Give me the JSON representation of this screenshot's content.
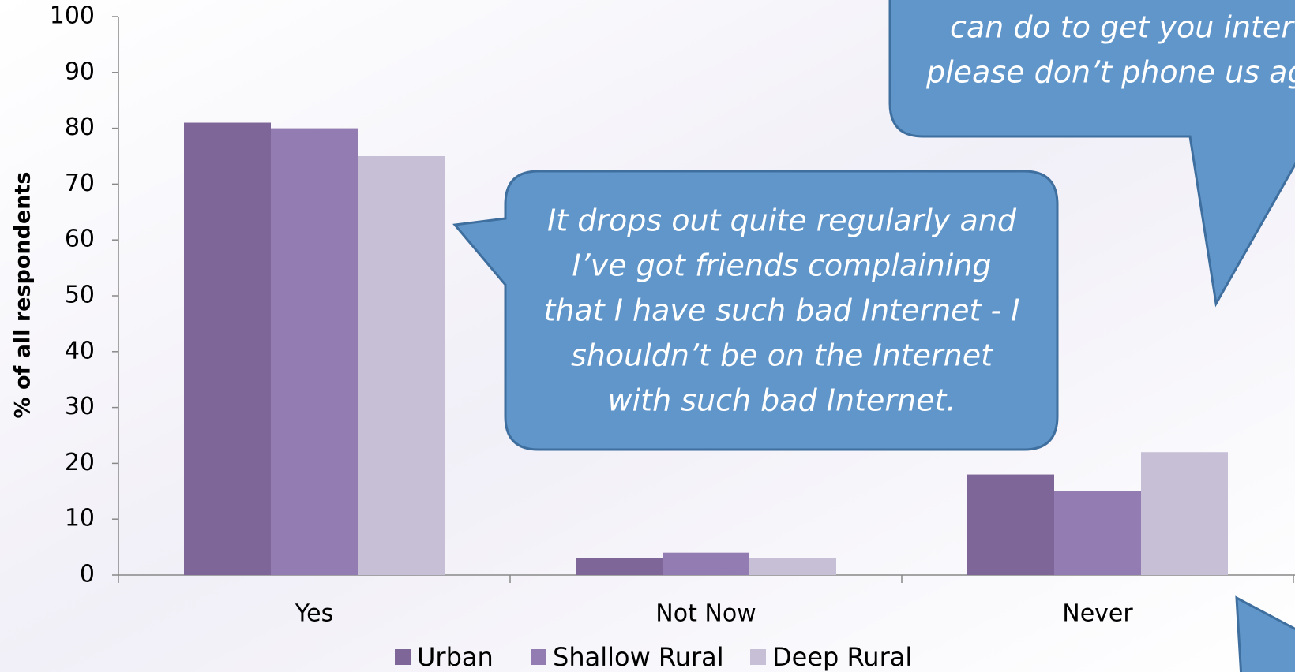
{
  "chart_data": {
    "type": "bar",
    "y_axis_label": "% of all respondents",
    "categories": [
      "Yes",
      "Not Now",
      "Never"
    ],
    "series": [
      {
        "name": "Urban",
        "color": "#7e6698",
        "values": [
          81,
          3,
          18
        ]
      },
      {
        "name": "Shallow Rural",
        "color": "#927cb1",
        "values": [
          80,
          4,
          15
        ]
      },
      {
        "name": "Deep Rural",
        "color": "#c6bfd6",
        "values": [
          75,
          3,
          22
        ]
      }
    ],
    "ylim": [
      0,
      100
    ],
    "yticks": [
      0,
      10,
      20,
      30,
      40,
      50,
      60,
      70,
      80,
      90,
      100
    ],
    "callouts": [
      {
        "lines": [
          "It drops out quite regularly and",
          "I’ve got friends complaining",
          "that I have such bad Internet - I",
          "shouldn’t be on the Internet",
          "with such bad Internet."
        ]
      },
      {
        "lines": [
          "can do to get you inter",
          "please don’t phone us ag"
        ]
      }
    ]
  }
}
